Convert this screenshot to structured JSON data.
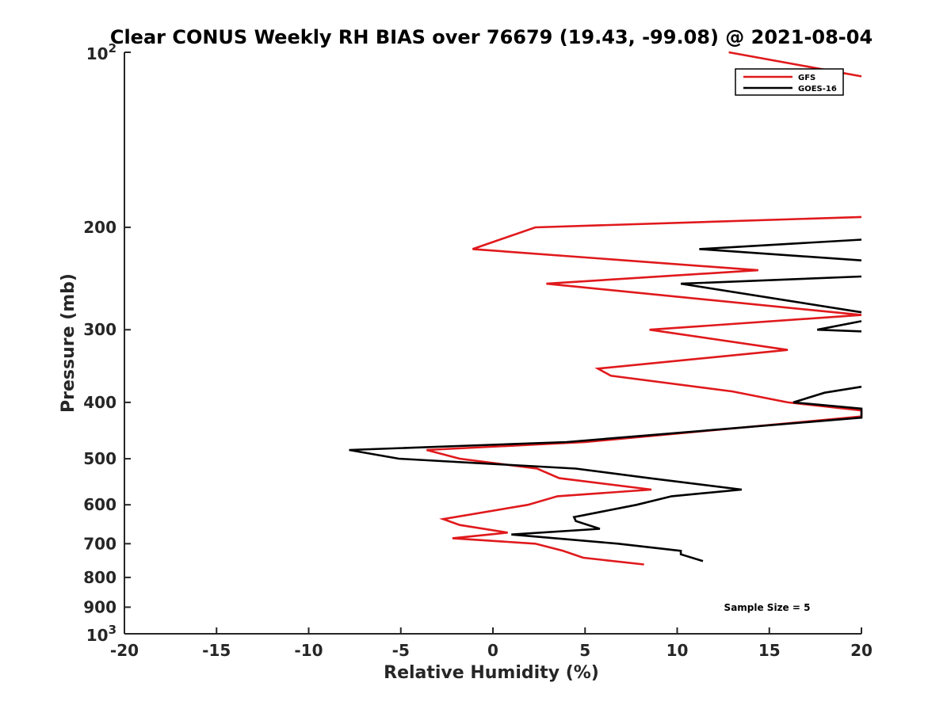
{
  "chart_data": {
    "type": "line",
    "title": "Clear CONUS Weekly RH BIAS over 76679 (19.43, -99.08) @ 2021-08-04",
    "xlabel": "Relative Humidity (%)",
    "ylabel": "Pressure (mb)",
    "xlim": [
      -20,
      20
    ],
    "ylim": [
      1000,
      100
    ],
    "y_scale": "log",
    "x_ticks": [
      "-20",
      "-15",
      "-10",
      "-5",
      "0",
      "5",
      "10",
      "15",
      "20"
    ],
    "y_ticks": [
      {
        "value": 100,
        "base": "10",
        "exp": "2"
      },
      {
        "value": 200,
        "label": "200"
      },
      {
        "value": 300,
        "label": "300"
      },
      {
        "value": 400,
        "label": "400"
      },
      {
        "value": 500,
        "label": "500"
      },
      {
        "value": 600,
        "label": "600"
      },
      {
        "value": 700,
        "label": "700"
      },
      {
        "value": 800,
        "label": "800"
      },
      {
        "value": 900,
        "label": "900"
      },
      {
        "value": 1000,
        "base": "10",
        "exp": "3"
      }
    ],
    "legend_position": "top-right",
    "annotation": "Sample Size = 5",
    "series": [
      {
        "name": "GFS",
        "color": "#e0191c",
        "points": [
          [
            12.8,
            100
          ],
          [
            20,
            110
          ],
          null,
          [
            20,
            192
          ],
          [
            2.3,
            200
          ],
          [
            -1.1,
            218
          ],
          [
            14.4,
            237
          ],
          [
            2.9,
            250
          ],
          [
            20,
            283
          ],
          [
            8.5,
            300
          ],
          [
            16.0,
            325
          ],
          [
            5.7,
            350
          ],
          [
            6.4,
            360
          ],
          [
            13.0,
            383
          ],
          [
            16.0,
            400
          ],
          [
            20,
            413
          ],
          [
            20,
            423
          ],
          [
            5.0,
            468
          ],
          [
            -3.6,
            483
          ],
          [
            -1.8,
            500
          ],
          [
            2.4,
            520
          ],
          [
            3.6,
            540
          ],
          [
            8.6,
            565
          ],
          [
            3.5,
            580
          ],
          [
            1.9,
            600
          ],
          [
            -2.7,
            635
          ],
          [
            -1.8,
            650
          ],
          [
            0.8,
            670
          ],
          [
            -2.2,
            685
          ],
          [
            2.3,
            700
          ],
          [
            3.8,
            720
          ],
          [
            4.9,
            740
          ],
          [
            8.2,
            760
          ]
        ]
      },
      {
        "name": "GOES-16",
        "color": "#000000",
        "points": [
          [
            20,
            210
          ],
          [
            11.2,
            218
          ],
          [
            20,
            228
          ],
          null,
          [
            20,
            243
          ],
          [
            10.2,
            250
          ],
          [
            20,
            280
          ],
          null,
          [
            20,
            290
          ],
          [
            17.6,
            300
          ],
          [
            20,
            302
          ],
          null,
          [
            20,
            376
          ],
          [
            18.0,
            385
          ],
          [
            16.3,
            400
          ],
          [
            20,
            410
          ],
          [
            20,
            425
          ],
          [
            4.0,
            468
          ],
          [
            -7.8,
            483
          ],
          [
            -5.1,
            500
          ],
          [
            4.5,
            520
          ],
          [
            8.5,
            540
          ],
          [
            13.5,
            565
          ],
          [
            9.7,
            580
          ],
          [
            7.8,
            600
          ],
          [
            4.4,
            630
          ],
          [
            4.5,
            640
          ],
          [
            5.8,
            660
          ],
          [
            1.0,
            675
          ],
          [
            6.8,
            700
          ],
          [
            10.2,
            720
          ],
          [
            10.2,
            730
          ],
          [
            11.4,
            750
          ]
        ]
      }
    ]
  }
}
